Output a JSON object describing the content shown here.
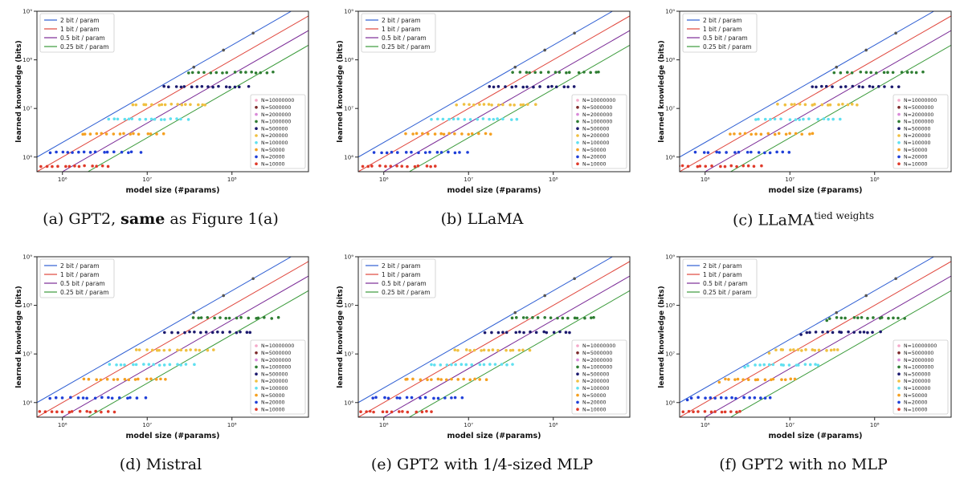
{
  "shared": {
    "xlabel": "model size (#params)",
    "ylabel": "learned knowledge (bits)",
    "x_ticks": [
      "10⁶",
      "10⁷",
      "10⁸"
    ],
    "y_ticks": [
      "10⁶",
      "10⁷",
      "10⁸",
      "10⁹"
    ],
    "lines": [
      {
        "name": "2 bit / param",
        "bits_per_param": 2,
        "color": "#2f5fd3"
      },
      {
        "name": "1 bit / param",
        "bits_per_param": 1,
        "color": "#e0463c"
      },
      {
        "name": "0.5 bit / param",
        "bits_per_param": 0.5,
        "color": "#7a2a96"
      },
      {
        "name": "0.25 bit / param",
        "bits_per_param": 0.25,
        "color": "#3a9a3a"
      }
    ],
    "series": [
      {
        "name": "N=10000000",
        "color": "#f4a8c8"
      },
      {
        "name": "N=5000000",
        "color": "#7a2828"
      },
      {
        "name": "N=2000000",
        "color": "#d98ad8"
      },
      {
        "name": "N=1000000",
        "color": "#2e7d32"
      },
      {
        "name": "N=500000",
        "color": "#1c1a6e"
      },
      {
        "name": "N=200000",
        "color": "#f0c040"
      },
      {
        "name": "N=100000",
        "color": "#5fe0f0"
      },
      {
        "name": "N=50000",
        "color": "#f5a020"
      },
      {
        "name": "N=20000",
        "color": "#1f3fd8"
      },
      {
        "name": "N=10000",
        "color": "#e03a2a"
      }
    ]
  },
  "panels": [
    {
      "caption_pre": "(a) GPT2, ",
      "caption_bold": "same",
      "caption_post": " as Figure 1(a)",
      "caption_sup": ""
    },
    {
      "caption_pre": "(b) LLaMA",
      "caption_bold": "",
      "caption_post": "",
      "caption_sup": ""
    },
    {
      "caption_pre": "(c) LLaMA",
      "caption_bold": "",
      "caption_post": "",
      "caption_sup": "tied weights"
    },
    {
      "caption_pre": "(d) Mistral",
      "caption_bold": "",
      "caption_post": "",
      "caption_sup": ""
    },
    {
      "caption_pre": "(e) GPT2 with 1/4-sized MLP",
      "caption_bold": "",
      "caption_post": "",
      "caption_sup": ""
    },
    {
      "caption_pre": "(f) GPT2 with no MLP",
      "caption_bold": "",
      "caption_post": "",
      "caption_sup": ""
    }
  ],
  "chart_data": [
    {
      "type": "scatter",
      "panel": "(a)",
      "x_scale": "log",
      "y_scale": "log",
      "xlim": [
        500000,
        800000000
      ],
      "ylim": [
        500000,
        1000000000
      ],
      "xlabel": "model size (#params)",
      "ylabel": "learned knowledge (bits)",
      "legend_positions": [
        "top-left",
        "bottom-right"
      ],
      "plateaus_bits": [
        5500000,
        2700000,
        1300000,
        650000
      ],
      "series": [
        {
          "name": "N=10000",
          "x": [
            800000,
            3500000
          ],
          "y": [
            600000,
            600000
          ]
        },
        {
          "name": "N=20000",
          "x": [
            1000000,
            8000000
          ],
          "y": [
            1200000,
            1200000
          ]
        },
        {
          "name": "N=50000",
          "x": [
            1400000,
            15000000
          ],
          "y": [
            3000000,
            3000000
          ]
        },
        {
          "name": "N=100000",
          "x": [
            2000000,
            30000000
          ],
          "y": [
            6000000,
            6000000
          ]
        },
        {
          "name": "N=200000",
          "x": [
            3000000,
            50000000
          ],
          "y": [
            12000000,
            12000000
          ]
        },
        {
          "name": "N=500000",
          "x": [
            6000000,
            150000000
          ],
          "y": [
            28000000,
            28000000
          ]
        },
        {
          "name": "N=1000000",
          "x": [
            9000000,
            300000000
          ],
          "y": [
            55000000,
            55000000
          ]
        }
      ]
    },
    {
      "type": "scatter",
      "panel": "(b)",
      "x_scale": "log",
      "y_scale": "log",
      "xlim": [
        500000,
        800000000
      ],
      "ylim": [
        500000,
        1000000000
      ],
      "xlabel": "model size (#params)",
      "ylabel": "learned knowledge (bits)",
      "legend_positions": [
        "top-left",
        "bottom-right"
      ]
    },
    {
      "type": "scatter",
      "panel": "(c)",
      "x_scale": "log",
      "y_scale": "log",
      "xlim": [
        500000,
        800000000
      ],
      "ylim": [
        500000,
        1000000000
      ],
      "xlabel": "model size (#params)",
      "ylabel": "learned knowledge (bits)",
      "legend_positions": [
        "top-left",
        "bottom-right"
      ]
    },
    {
      "type": "scatter",
      "panel": "(d)",
      "x_scale": "log",
      "y_scale": "log",
      "xlim": [
        500000,
        800000000
      ],
      "ylim": [
        500000,
        1000000000
      ],
      "xlabel": "model size (#params)",
      "ylabel": "learned knowledge (bits)",
      "legend_positions": [
        "top-left",
        "bottom-right"
      ]
    },
    {
      "type": "scatter",
      "panel": "(e)",
      "x_scale": "log",
      "y_scale": "log",
      "xlim": [
        500000,
        800000000
      ],
      "ylim": [
        500000,
        1000000000
      ],
      "xlabel": "model size (#params)",
      "ylabel": "learned knowledge (bits)",
      "legend_positions": [
        "top-left",
        "bottom-right"
      ]
    },
    {
      "type": "scatter",
      "panel": "(f)",
      "x_scale": "log",
      "y_scale": "log",
      "xlim": [
        500000,
        800000000
      ],
      "ylim": [
        500000,
        1000000000
      ],
      "xlabel": "model size (#params)",
      "ylabel": "learned knowledge (bits)",
      "legend_positions": [
        "top-left",
        "bottom-right"
      ]
    }
  ]
}
